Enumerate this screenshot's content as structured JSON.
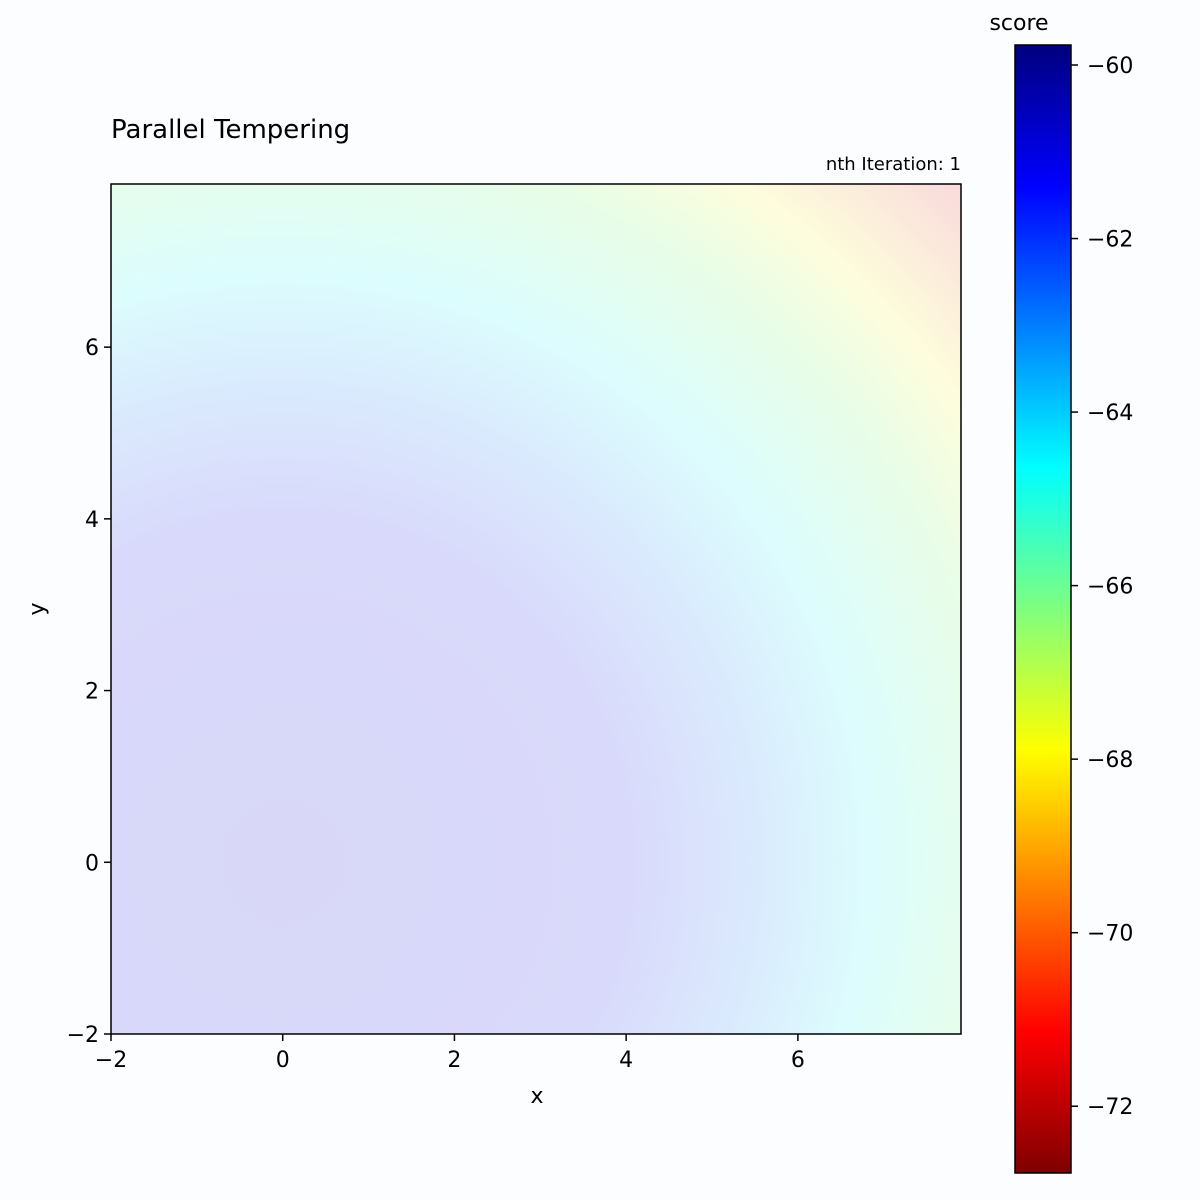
{
  "chart_data": {
    "type": "heatmap",
    "title": "Parallel Tempering",
    "annotation": "nth Iteration: 1",
    "xlabel": "x",
    "ylabel": "y",
    "xlim": [
      -2,
      7.9
    ],
    "ylim": [
      -2,
      7.9
    ],
    "xticks": [
      -2,
      0,
      2,
      4,
      6
    ],
    "yticks": [
      -2,
      0,
      2,
      4,
      6
    ],
    "grid": false,
    "colormap": "jet (reversed)",
    "colormap_stops": [
      "#00007f",
      "#0000ff",
      "#007fff",
      "#00ffff",
      "#7fff7f",
      "#ffff00",
      "#ff7f00",
      "#ff0000",
      "#7f0000"
    ],
    "colorbar": {
      "label": "score",
      "range": [
        -60,
        -73
      ],
      "ticks": [
        -60,
        -62,
        -64,
        -66,
        -68,
        -70,
        -72
      ]
    },
    "surface_samples": [
      {
        "x": 0,
        "y": 0,
        "score": -61.6
      },
      {
        "x": 3,
        "y": 2,
        "score": -62.0
      },
      {
        "x": 5,
        "y": 5,
        "score": -64.0
      },
      {
        "x": 7,
        "y": 7,
        "score": -68.0
      },
      {
        "x": 7.9,
        "y": 7.9,
        "score": -70.5
      }
    ]
  }
}
